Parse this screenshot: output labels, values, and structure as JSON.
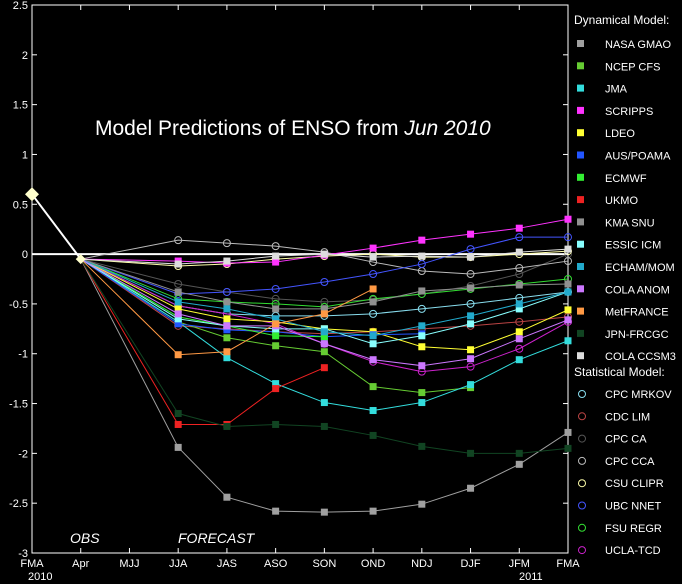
{
  "chart_data": {
    "type": "line",
    "title": "Model Predictions of ENSO from",
    "title_date": "Jun 2010",
    "obs_label": "OBS",
    "forecast_label": "FORECAST",
    "categories": [
      "FMA",
      "Apr",
      "MJJ",
      "JJA",
      "JAS",
      "ASO",
      "SON",
      "OND",
      "NDJ",
      "DJF",
      "JFM",
      "FMA"
    ],
    "year_labels": {
      "start": "2010",
      "end": "2011"
    },
    "ylim": [
      -3,
      2.5
    ],
    "yticks": [
      2.5,
      2,
      1.5,
      1,
      0.5,
      0,
      -0.5,
      -1,
      -1.5,
      -2,
      -2.5,
      -3
    ],
    "ytick_labels": [
      "2.5",
      "2",
      "1.5",
      "1",
      "0.5",
      "0",
      "-0.5",
      "-1",
      "-1.5",
      "-2",
      "-2.5",
      "-3"
    ],
    "observed": {
      "x": [
        0,
        1
      ],
      "values": [
        0.6,
        -0.05
      ],
      "color": "#ffffcc"
    },
    "legend_dynamical_title": "Dynamical Model:",
    "legend_statistical_title": "Statistical Model:",
    "dynamical": [
      {
        "name": "NASA GMAO",
        "color": "#a0a0a0",
        "values": [
          -1.94,
          -2.44,
          -2.58,
          -2.59,
          -2.58,
          -2.51,
          -2.35,
          -2.11,
          -1.79
        ]
      },
      {
        "name": "NCEP CFS",
        "color": "#66cc33",
        "values": [
          -0.68,
          -0.84,
          -0.92,
          -0.98,
          -1.33,
          -1.39,
          -1.34,
          null,
          null
        ]
      },
      {
        "name": "JMA",
        "color": "#33dddd",
        "values": [
          -0.68,
          -1.04,
          -1.3,
          -1.49,
          -1.57,
          -1.49,
          -1.31,
          -1.06,
          -0.87
        ]
      },
      {
        "name": "SCRIPPS",
        "color": "#ff33ff",
        "values": [
          -0.07,
          -0.09,
          -0.08,
          -0.01,
          0.06,
          0.14,
          0.2,
          0.26,
          0.35
        ]
      },
      {
        "name": "LDEO",
        "color": "#ffff33",
        "values": [
          -0.55,
          -0.65,
          -0.68,
          -0.75,
          -0.78,
          -0.93,
          -0.96,
          -0.78,
          -0.56
        ]
      },
      {
        "name": "AUS/POAMA",
        "color": "#2255ff",
        "values": [
          -0.7,
          -0.76,
          -0.78,
          -0.83,
          -0.81,
          -0.8,
          null,
          null,
          null
        ]
      },
      {
        "name": "ECMWF",
        "color": "#33ee33",
        "values": [
          -0.63,
          -0.72,
          -0.82,
          -0.83,
          null,
          null,
          null,
          null,
          null
        ]
      },
      {
        "name": "UKMO",
        "color": "#ee2222",
        "values": [
          -1.71,
          -1.71,
          -1.35,
          -1.14,
          null,
          null,
          null,
          null,
          null
        ]
      },
      {
        "name": "KMA SNU",
        "color": "#909090",
        "values": [
          -0.38,
          -0.48,
          -0.55,
          -0.55,
          -0.48,
          -0.37,
          -0.34,
          -0.31,
          -0.3
        ]
      },
      {
        "name": "ESSIC ICM",
        "color": "#88ffff",
        "values": [
          -0.65,
          -0.72,
          -0.75,
          -0.75,
          -0.9,
          -0.82,
          -0.7,
          -0.55,
          -0.38
        ]
      },
      {
        "name": "ECHAM/MOM",
        "color": "#22aacc",
        "values": [
          -0.48,
          -0.55,
          -0.65,
          -0.78,
          -0.82,
          -0.72,
          -0.62,
          -0.5,
          -0.38
        ]
      },
      {
        "name": "COLA ANOM",
        "color": "#cc77ff",
        "values": [
          -0.6,
          -0.72,
          -0.72,
          -0.9,
          -1.06,
          -1.12,
          -1.05,
          -0.85,
          -0.66
        ]
      },
      {
        "name": "MetFRANCE",
        "color": "#ff9944",
        "values": [
          -1.01,
          -0.98,
          -0.7,
          -0.6,
          -0.35,
          null,
          null,
          null,
          null
        ]
      },
      {
        "name": "JPN-FRCGC",
        "color": "#114422",
        "values": [
          -1.6,
          -1.73,
          -1.71,
          -1.73,
          -1.82,
          -1.93,
          -2.0,
          -2.0,
          -1.95
        ]
      },
      {
        "name": "COLA CCSM3",
        "color": "#dddddd",
        "values": [
          -0.1,
          -0.07,
          -0.02,
          0.0,
          -0.03,
          -0.02,
          -0.03,
          0.02,
          0.05
        ]
      }
    ],
    "statistical": [
      {
        "name": "CPC MRKOV",
        "color": "#88ddee",
        "values": [
          -0.52,
          -0.6,
          -0.62,
          -0.62,
          -0.6,
          -0.55,
          -0.5,
          -0.44,
          -0.38
        ]
      },
      {
        "name": "CDC LIM",
        "color": "#bb4444",
        "values": [
          -0.72,
          -0.75,
          -0.78,
          -0.8,
          -0.78,
          -0.75,
          -0.72,
          -0.68,
          -0.63
        ]
      },
      {
        "name": "CPC CA",
        "color": "#555555",
        "values": [
          -0.3,
          -0.38,
          -0.45,
          -0.48,
          -0.46,
          -0.4,
          -0.32,
          -0.2,
          0.0
        ]
      },
      {
        "name": "CPC CCA",
        "color": "#bbbbbb",
        "values": [
          0.14,
          0.11,
          0.08,
          0.02,
          -0.08,
          -0.17,
          -0.2,
          -0.14,
          -0.07
        ]
      },
      {
        "name": "CSU CLIPR",
        "color": "#ffffaa",
        "values": [
          -0.12,
          -0.1,
          -0.05,
          -0.02,
          0.0,
          -0.03,
          -0.03,
          0.0,
          0.03
        ]
      },
      {
        "name": "UBC NNET",
        "color": "#4455ff",
        "values": [
          -0.4,
          -0.38,
          -0.35,
          -0.28,
          -0.2,
          -0.1,
          0.05,
          0.17,
          0.17
        ]
      },
      {
        "name": "FSU REGR",
        "color": "#33dd33",
        "values": [
          -0.45,
          -0.48,
          -0.5,
          -0.53,
          -0.45,
          -0.4,
          -0.35,
          -0.3,
          -0.25
        ]
      },
      {
        "name": "UCLA-TCD",
        "color": "#cc22cc",
        "values": [
          -0.52,
          -0.6,
          -0.7,
          -0.9,
          -1.08,
          -1.18,
          -1.13,
          -0.95,
          -0.68
        ]
      }
    ]
  }
}
